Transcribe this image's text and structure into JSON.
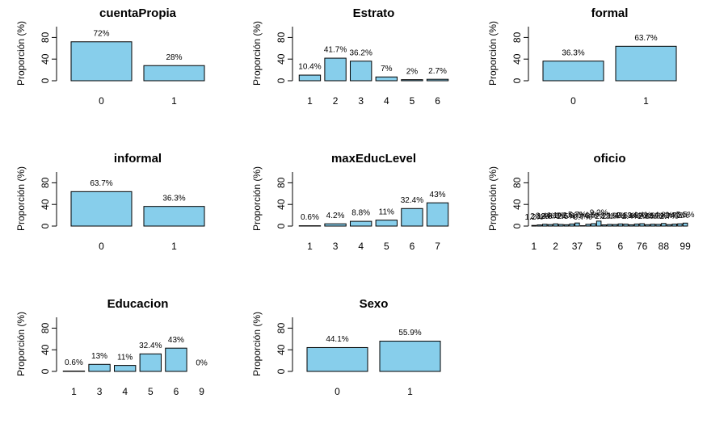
{
  "chart_data": [
    {
      "type": "bar",
      "title": "cuentaPropia",
      "ylabel": "Proporción (%)",
      "categories": [
        "0",
        "1"
      ],
      "values": [
        72,
        28
      ],
      "value_labels": [
        "72%",
        "28%"
      ],
      "color": "#87ceeb",
      "ylim": [
        0,
        100
      ],
      "yticks": [
        0,
        40,
        80
      ]
    },
    {
      "type": "bar",
      "title": "Estrato",
      "ylabel": "Proporción (%)",
      "categories": [
        "1",
        "2",
        "3",
        "4",
        "5",
        "6"
      ],
      "values": [
        10.4,
        41.7,
        36.2,
        7,
        2,
        2.7
      ],
      "value_labels": [
        "10.4%",
        "41.7%",
        "36.2%",
        "7%",
        "2%",
        "2.7%"
      ],
      "color": "#87ceeb",
      "ylim": [
        0,
        100
      ],
      "yticks": [
        0,
        40,
        80
      ]
    },
    {
      "type": "bar",
      "title": "formal",
      "ylabel": "Proporción (%)",
      "categories": [
        "0",
        "1"
      ],
      "values": [
        36.3,
        63.7
      ],
      "value_labels": [
        "36.3%",
        "63.7%"
      ],
      "color": "#87ceeb",
      "ylim": [
        0,
        100
      ],
      "yticks": [
        0,
        40,
        80
      ]
    },
    {
      "type": "bar",
      "title": "informal",
      "ylabel": "Proporción (%)",
      "categories": [
        "0",
        "1"
      ],
      "values": [
        63.7,
        36.3
      ],
      "value_labels": [
        "63.7%",
        "36.3%"
      ],
      "color": "#87ceeb",
      "ylim": [
        0,
        100
      ],
      "yticks": [
        0,
        40,
        80
      ]
    },
    {
      "type": "bar",
      "title": "maxEducLevel",
      "ylabel": "Proporción (%)",
      "categories": [
        "1",
        "3",
        "4",
        "5",
        "6",
        "7"
      ],
      "values": [
        0.6,
        4.2,
        8.8,
        11,
        32.4,
        43
      ],
      "value_labels": [
        "0.6%",
        "4.2%",
        "8.8%",
        "11%",
        "32.4%",
        "43%"
      ],
      "color": "#87ceeb",
      "ylim": [
        0,
        100
      ],
      "yticks": [
        0,
        40,
        80
      ]
    },
    {
      "type": "bar",
      "title": "oficio",
      "ylabel": "Proporción (%)",
      "categories": [
        "1",
        null,
        null,
        null,
        "2",
        null,
        null,
        null,
        "37",
        null,
        null,
        null,
        "5",
        null,
        null,
        null,
        "6",
        null,
        null,
        null,
        "76",
        null,
        null,
        null,
        "88",
        null,
        null,
        null,
        "99"
      ],
      "values": [
        1.2,
        2.1,
        3.4,
        2.8,
        4.1,
        3.0,
        2.5,
        3.9,
        5.7,
        0.7,
        3.3,
        4.5,
        9.2,
        2.2,
        3.1,
        2.9,
        4.0,
        3.6,
        2.4,
        3.8,
        4.4,
        2.6,
        3.5,
        3.2,
        4.8,
        2.7,
        3.7,
        4.2,
        5.5
      ],
      "value_labels": [
        "1.2%",
        "2.1%",
        "3.4%",
        "2.8%",
        "4.1%",
        "3%",
        "2.5%",
        "3.9%",
        "5.7%",
        "0.7%",
        "3.3%",
        "4.5%",
        "9.2%",
        "2.2%",
        "3.1%",
        "2.9%",
        "4%",
        "3.6%",
        "2.4%",
        "3.8%",
        "4.4%",
        "2.6%",
        "3.5%",
        "3.2%",
        "4.8%",
        "2.7%",
        "3.7%",
        "4.2%",
        "5.5%"
      ],
      "color": "#87ceeb",
      "ylim": [
        0,
        100
      ],
      "yticks": [
        0,
        40,
        80
      ]
    },
    {
      "type": "bar",
      "title": "Educacion",
      "ylabel": "Proporción (%)",
      "categories": [
        "1",
        "3",
        "4",
        "5",
        "6",
        "9"
      ],
      "values": [
        0.6,
        13,
        11,
        32.4,
        43,
        0
      ],
      "value_labels": [
        "0.6%",
        "13%",
        "11%",
        "32.4%",
        "43%",
        "0%"
      ],
      "color": "#87ceeb",
      "ylim": [
        0,
        100
      ],
      "yticks": [
        0,
        40,
        80
      ]
    },
    {
      "type": "bar",
      "title": "Sexo",
      "ylabel": "Proporción (%)",
      "categories": [
        "0",
        "1"
      ],
      "values": [
        44.1,
        55.9
      ],
      "value_labels": [
        "44.1%",
        "55.9%"
      ],
      "color": "#87ceeb",
      "ylim": [
        0,
        100
      ],
      "yticks": [
        0,
        40,
        80
      ]
    }
  ]
}
